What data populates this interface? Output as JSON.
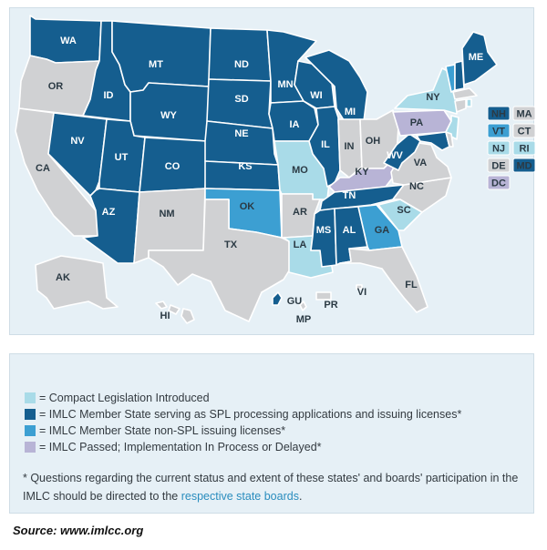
{
  "colors": {
    "spl": "#155e8f",
    "non_spl": "#3c9fd2",
    "introduced": "#a9dbe8",
    "delayed": "#b8b4d6",
    "none": "#d0d1d3",
    "background": "#e6f0f6"
  },
  "states": [
    {
      "id": "WA",
      "status": "spl"
    },
    {
      "id": "OR",
      "status": "none"
    },
    {
      "id": "CA",
      "status": "none"
    },
    {
      "id": "ID",
      "status": "spl"
    },
    {
      "id": "NV",
      "status": "spl"
    },
    {
      "id": "MT",
      "status": "spl"
    },
    {
      "id": "WY",
      "status": "spl"
    },
    {
      "id": "UT",
      "status": "spl"
    },
    {
      "id": "AZ",
      "status": "spl"
    },
    {
      "id": "CO",
      "status": "spl"
    },
    {
      "id": "NM",
      "status": "none"
    },
    {
      "id": "ND",
      "status": "spl"
    },
    {
      "id": "SD",
      "status": "spl"
    },
    {
      "id": "NE",
      "status": "spl"
    },
    {
      "id": "KS",
      "status": "spl"
    },
    {
      "id": "OK",
      "status": "non_spl"
    },
    {
      "id": "TX",
      "status": "none"
    },
    {
      "id": "MN",
      "status": "spl"
    },
    {
      "id": "IA",
      "status": "spl"
    },
    {
      "id": "MO",
      "status": "introduced"
    },
    {
      "id": "AR",
      "status": "none"
    },
    {
      "id": "LA",
      "status": "introduced"
    },
    {
      "id": "WI",
      "status": "spl"
    },
    {
      "id": "IL",
      "status": "spl"
    },
    {
      "id": "MI",
      "status": "spl"
    },
    {
      "id": "IN",
      "status": "none"
    },
    {
      "id": "OH",
      "status": "none"
    },
    {
      "id": "KY",
      "status": "delayed"
    },
    {
      "id": "TN",
      "status": "spl"
    },
    {
      "id": "MS",
      "status": "spl"
    },
    {
      "id": "AL",
      "status": "spl"
    },
    {
      "id": "GA",
      "status": "non_spl"
    },
    {
      "id": "FL",
      "status": "none"
    },
    {
      "id": "SC",
      "status": "introduced"
    },
    {
      "id": "NC",
      "status": "none"
    },
    {
      "id": "VA",
      "status": "none"
    },
    {
      "id": "WV",
      "status": "spl"
    },
    {
      "id": "PA",
      "status": "delayed"
    },
    {
      "id": "NY",
      "status": "introduced"
    },
    {
      "id": "ME",
      "status": "spl"
    },
    {
      "id": "AK",
      "status": "none"
    },
    {
      "id": "HI",
      "status": "none"
    },
    {
      "id": "GU",
      "status": "spl"
    },
    {
      "id": "PR",
      "status": "none"
    },
    {
      "id": "VI",
      "status": "none"
    },
    {
      "id": "MP",
      "status": "none"
    }
  ],
  "northeast_boxes": [
    {
      "id": "NH",
      "status": "spl"
    },
    {
      "id": "MA",
      "status": "none"
    },
    {
      "id": "VT",
      "status": "non_spl"
    },
    {
      "id": "CT",
      "status": "none"
    },
    {
      "id": "NJ",
      "status": "introduced"
    },
    {
      "id": "RI",
      "status": "introduced"
    },
    {
      "id": "DE",
      "status": "none"
    },
    {
      "id": "MD",
      "status": "spl"
    },
    {
      "id": "DC",
      "status": "delayed"
    }
  ],
  "legend": [
    {
      "status": "introduced",
      "label": "= Compact Legislation Introduced"
    },
    {
      "status": "spl",
      "label": "= IMLC Member State serving as SPL processing applications and issuing licenses*"
    },
    {
      "status": "non_spl",
      "label": "= IMLC Member State non-SPL issuing licenses*"
    },
    {
      "status": "delayed",
      "label": "= IMLC Passed; Implementation In Process or Delayed*"
    }
  ],
  "note": {
    "text": "* Questions regarding the current status and extent of these states' and boards' participation in the IMLC should be directed to the ",
    "link": "respective state boards",
    "end": "."
  },
  "source": "Source: www.imlcc.org"
}
